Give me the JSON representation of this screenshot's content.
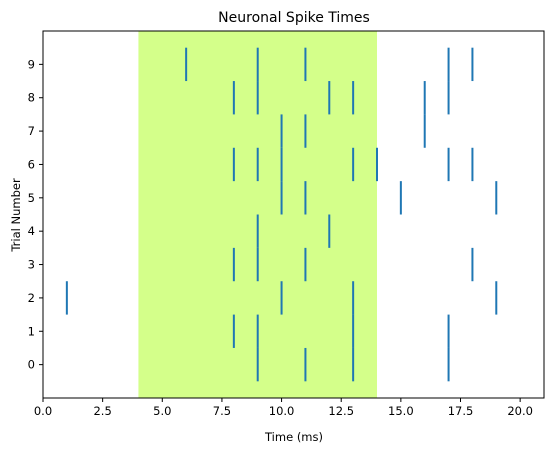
{
  "chart_data": {
    "type": "scatter",
    "title": "Neuronal Spike Times",
    "xlabel": "Time (ms)",
    "ylabel": "Trial Number",
    "xlim": [
      0,
      21
    ],
    "ylim": [
      -1,
      10
    ],
    "xticks": [
      0,
      2.5,
      5,
      7.5,
      10,
      12.5,
      15,
      17.5,
      20
    ],
    "xtick_labels": [
      "0.0",
      "2.5",
      "5.0",
      "7.5",
      "10.0",
      "12.5",
      "15.0",
      "17.5",
      "20.0"
    ],
    "yticks": [
      0,
      1,
      2,
      3,
      4,
      5,
      6,
      7,
      8,
      9
    ],
    "ytick_labels": [
      "0",
      "1",
      "2",
      "3",
      "4",
      "5",
      "6",
      "7",
      "8",
      "9"
    ],
    "grid": false,
    "highlight_span": {
      "x0": 4,
      "x1": 14,
      "color": "#d4ff8a"
    },
    "spike_color": "#1f77b4",
    "trials": [
      {
        "trial": 0,
        "spikes": [
          9,
          11,
          13,
          17
        ]
      },
      {
        "trial": 1,
        "spikes": [
          8,
          9,
          13,
          17
        ]
      },
      {
        "trial": 2,
        "spikes": [
          1,
          10,
          13,
          19
        ]
      },
      {
        "trial": 3,
        "spikes": [
          8,
          9,
          11,
          18
        ]
      },
      {
        "trial": 4,
        "spikes": [
          9,
          12
        ]
      },
      {
        "trial": 5,
        "spikes": [
          10,
          11,
          15,
          19
        ]
      },
      {
        "trial": 6,
        "spikes": [
          8,
          9,
          10,
          13,
          14,
          17,
          18
        ]
      },
      {
        "trial": 7,
        "spikes": [
          10,
          11,
          16
        ]
      },
      {
        "trial": 8,
        "spikes": [
          8,
          9,
          12,
          13,
          16,
          17
        ]
      },
      {
        "trial": 9,
        "spikes": [
          6,
          9,
          11,
          17,
          18
        ]
      }
    ]
  }
}
